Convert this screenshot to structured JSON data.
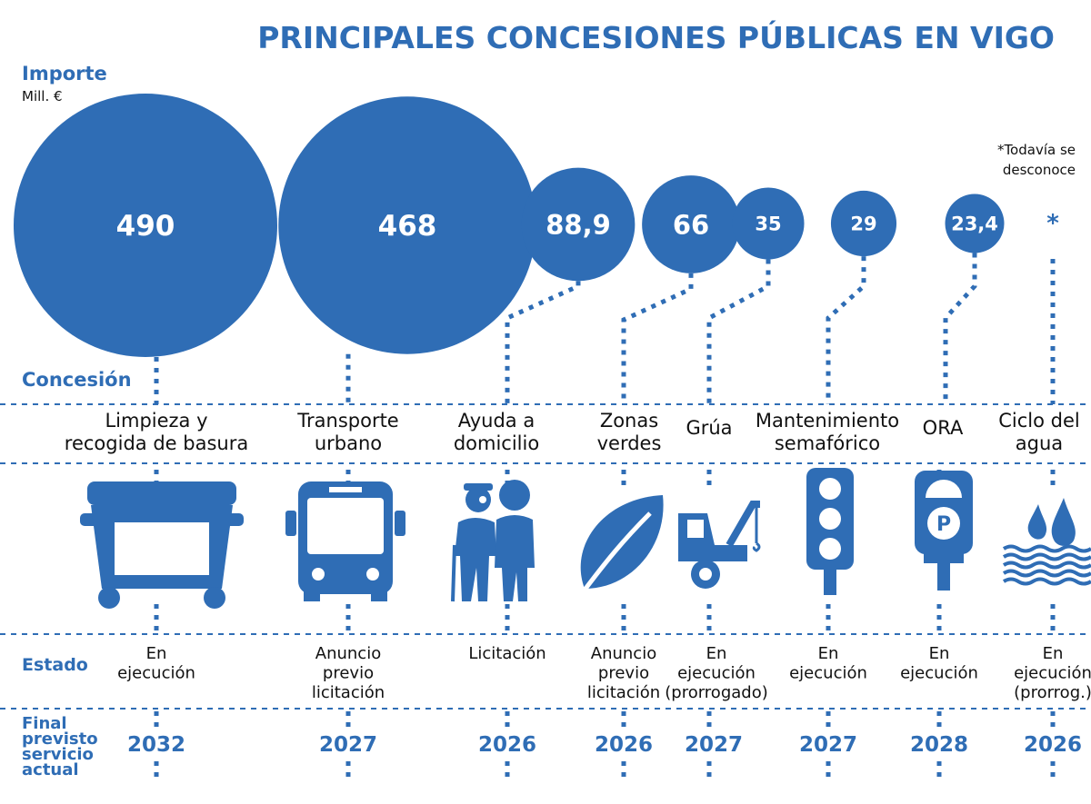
{
  "title": "PRINCIPALES CONCESIONES PÚBLICAS EN VIGO",
  "labels": {
    "importe": "Importe",
    "unit": "Mill. €",
    "concesion": "Concesión",
    "estado": "Estado",
    "final": [
      "Final",
      "previsto",
      "servicio",
      "actual"
    ],
    "note": [
      "*Todavía se",
      "desconoce"
    ]
  },
  "colors": {
    "accent": "#2f6db5",
    "text": "#111111",
    "white": "#ffffff"
  },
  "chart_data": {
    "type": "bubble",
    "title": "PRINCIPALES CONCESIONES PÚBLICAS EN VIGO",
    "value_label": "Importe",
    "unit": "Mill. €",
    "items": [
      {
        "concession": [
          "Limpieza y",
          "recogida de basura"
        ],
        "value": 490,
        "value_label": "490",
        "status": [
          "En",
          "ejecución"
        ],
        "end_year": "2032",
        "icon": "garbage-container-icon"
      },
      {
        "concession": [
          "Transporte",
          "urbano"
        ],
        "value": 468,
        "value_label": "468",
        "status": [
          "Anuncio",
          "previo",
          "licitación"
        ],
        "end_year": "2027",
        "icon": "bus-icon"
      },
      {
        "concession": [
          "Ayuda a",
          "domicilio"
        ],
        "value": 88.9,
        "value_label": "88,9",
        "status": [
          "Licitación"
        ],
        "end_year": "2026",
        "icon": "elderly-care-icon"
      },
      {
        "concession": [
          "Zonas",
          "verdes"
        ],
        "value": 66,
        "value_label": "66",
        "status": [
          "Anuncio",
          "previo",
          "licitación"
        ],
        "end_year": "2026",
        "icon": "leaf-icon"
      },
      {
        "concession": [
          "Grúa"
        ],
        "value": 35,
        "value_label": "35",
        "status": [
          "En",
          "ejecución",
          "(prorrogado)"
        ],
        "end_year": "2027",
        "icon": "tow-truck-icon"
      },
      {
        "concession": [
          "Mantenimiento",
          "semafórico"
        ],
        "value": 29,
        "value_label": "29",
        "status": [
          "En",
          "ejecución"
        ],
        "end_year": "2027",
        "icon": "traffic-light-icon"
      },
      {
        "concession": [
          "ORA"
        ],
        "value": 23.4,
        "value_label": "23,4",
        "status": [
          "En",
          "ejecución"
        ],
        "end_year": "2028",
        "icon": "parking-meter-icon"
      },
      {
        "concession": [
          "Ciclo del",
          "agua"
        ],
        "value": null,
        "value_label": "*",
        "status": [
          "En",
          "ejecución",
          "(prorrog.)"
        ],
        "end_year": "2026",
        "icon": "water-icon"
      }
    ]
  }
}
